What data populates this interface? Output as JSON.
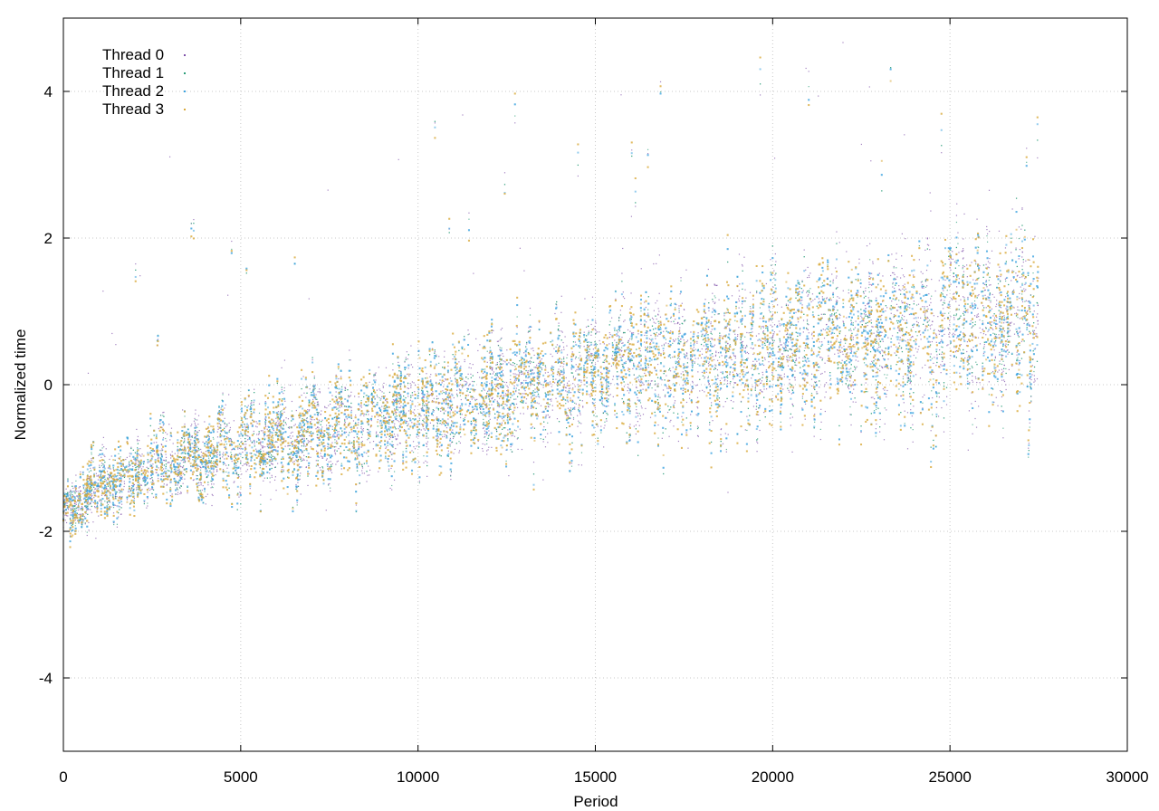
{
  "chart_data": {
    "type": "scatter",
    "title": "",
    "xlabel": "Period",
    "ylabel": "Normalized time",
    "xlim": [
      0,
      30000
    ],
    "ylim": [
      -5,
      5
    ],
    "xticks": [
      0,
      5000,
      10000,
      15000,
      20000,
      25000,
      30000
    ],
    "yticks": [
      -4,
      -2,
      0,
      2,
      4
    ],
    "xtick_labels": [
      "0",
      "5000",
      "10000",
      "15000",
      "20000",
      "25000",
      "30000"
    ],
    "ytick_labels": [
      "-4",
      "-2",
      "0",
      "2",
      "4"
    ],
    "grid": true,
    "legend_position": "top-left",
    "series": [
      {
        "name": "Thread 0",
        "color": "#7e4fa8",
        "marker": "dot"
      },
      {
        "name": "Thread 1",
        "color": "#2a9d78",
        "marker": "dot"
      },
      {
        "name": "Thread 2",
        "color": "#3ba3e0",
        "marker": "x"
      },
      {
        "name": "Thread 3",
        "color": "#d9a93a",
        "marker": "x"
      }
    ],
    "x_range": [
      0,
      27500
    ],
    "trend": [
      {
        "x": 0,
        "y": -1.75
      },
      {
        "x": 1000,
        "y": -1.4
      },
      {
        "x": 3000,
        "y": -1.05
      },
      {
        "x": 6000,
        "y": -0.75
      },
      {
        "x": 8500,
        "y": -0.55
      },
      {
        "x": 12000,
        "y": -0.15
      },
      {
        "x": 16000,
        "y": 0.25
      },
      {
        "x": 20000,
        "y": 0.55
      },
      {
        "x": 24000,
        "y": 0.75
      },
      {
        "x": 27500,
        "y": 0.95
      }
    ]
  }
}
